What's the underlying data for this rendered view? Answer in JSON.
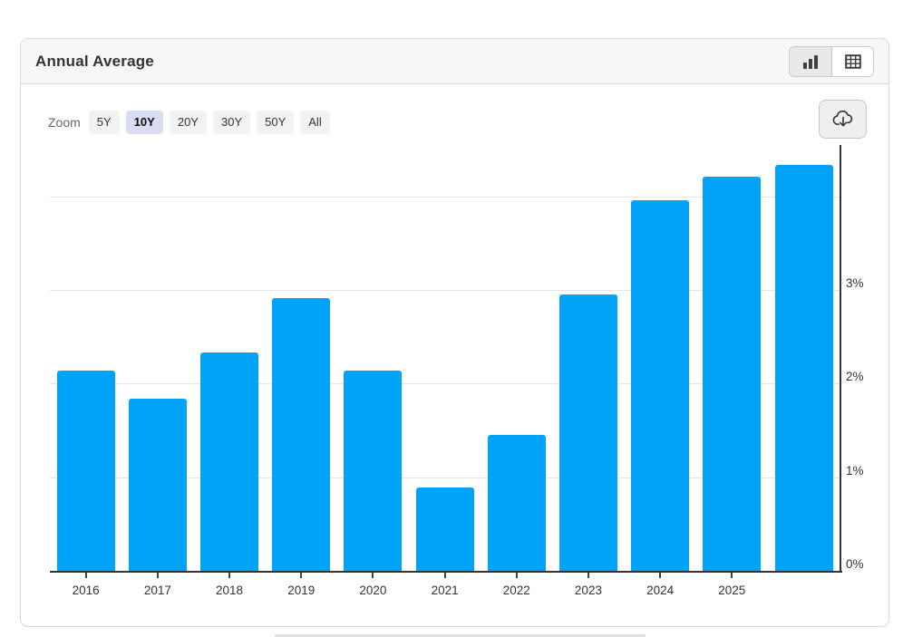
{
  "header": {
    "title": "Annual Average",
    "view_toggle": {
      "chart_view_icon": "bar-chart-icon",
      "table_view_icon": "table-icon",
      "active_view": "chart"
    }
  },
  "zoom_controls": {
    "label": "Zoom",
    "options": [
      {
        "label": "5Y",
        "selected": false
      },
      {
        "label": "10Y",
        "selected": true
      },
      {
        "label": "20Y",
        "selected": false
      },
      {
        "label": "30Y",
        "selected": false
      },
      {
        "label": "50Y",
        "selected": false
      },
      {
        "label": "All",
        "selected": false
      }
    ]
  },
  "toolbar": {
    "download_icon": "cloud-download-icon"
  },
  "chart_data": {
    "type": "bar",
    "title": "Annual Average",
    "categories": [
      "2016",
      "2017",
      "2018",
      "2019",
      "2020",
      "2021",
      "2022",
      "2023",
      "2024",
      "2025",
      ""
    ],
    "values": [
      2.14,
      1.84,
      2.33,
      2.91,
      2.14,
      0.89,
      1.45,
      2.95,
      3.96,
      4.21,
      4.34
    ],
    "unit": "%",
    "xlabel": "",
    "ylabel": "",
    "ylim": [
      0,
      4.35
    ],
    "y_axis_side": "right",
    "grid": true,
    "y_gridlines": [
      1,
      2,
      3,
      4
    ],
    "y_ticks": [
      {
        "value": 0,
        "label": "0%"
      },
      {
        "value": 1,
        "label": "1%"
      },
      {
        "value": 2,
        "label": "2%"
      },
      {
        "value": 3,
        "label": "3%"
      }
    ],
    "bar_color": "#00a3f7",
    "legend": false
  },
  "colors": {
    "bar": "#00a3f7",
    "header_bg": "#f7f7f7",
    "card_border": "#d8d8d8",
    "selected_zoom_bg": "#dadcf3",
    "button_bg": "#f2f2f2",
    "gridline": "#e6e6e6",
    "axis": "#333333"
  }
}
